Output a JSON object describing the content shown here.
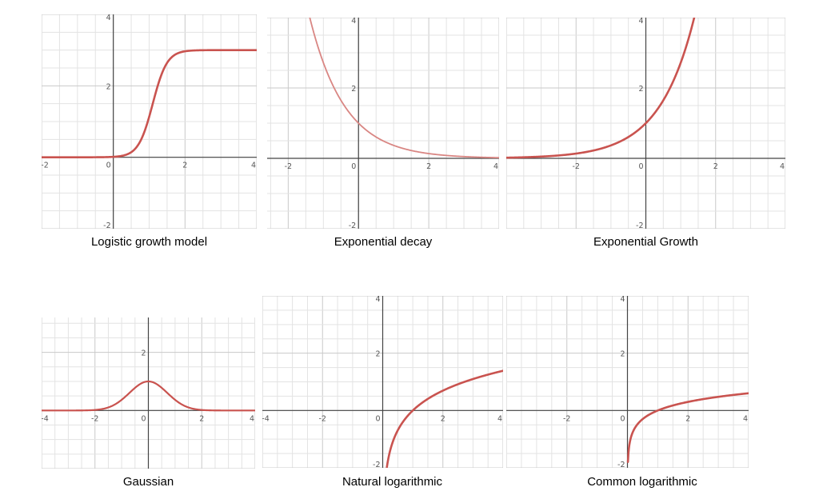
{
  "colors": {
    "grid_minor": "#e3e3e3",
    "grid_major": "#c9c9c9",
    "axis": "#444444",
    "tick_text": "#555555",
    "curve": "#c9534f",
    "curve_light": "#d98683"
  },
  "chart_data": [
    {
      "type": "line",
      "title": "Logistic growth model",
      "function": "logistic",
      "xlim": [
        -2,
        4
      ],
      "ylim": [
        -2,
        4
      ],
      "xticks": [
        "-2",
        "0",
        "2",
        "4"
      ],
      "yticks": [
        "-2",
        "2",
        "4"
      ],
      "x": [
        -2,
        -1,
        0,
        0.5,
        1,
        1.5,
        2,
        3,
        4
      ],
      "y": [
        0,
        0,
        0.06,
        0.4,
        1.5,
        2.6,
        2.94,
        3,
        3
      ],
      "xlabel": "",
      "ylabel": ""
    },
    {
      "type": "line",
      "title": "Exponential decay",
      "function": "exp_decay",
      "xlim": [
        -2.6,
        4
      ],
      "ylim": [
        -2,
        4
      ],
      "xticks": [
        "-2",
        "0",
        "2",
        "4"
      ],
      "yticks": [
        "-2",
        "2",
        "4"
      ],
      "x": [
        -1.3,
        -1,
        0,
        1,
        2,
        3,
        4
      ],
      "y": [
        3.67,
        2.72,
        1,
        0.37,
        0.14,
        0.05,
        0.02
      ],
      "xlabel": "",
      "ylabel": ""
    },
    {
      "type": "line",
      "title": "Exponential Growth",
      "function": "exp_growth",
      "xlim": [
        -4,
        4
      ],
      "ylim": [
        -2,
        4
      ],
      "xticks": [
        "-2",
        "0",
        "2",
        "4"
      ],
      "yticks": [
        "-2",
        "2",
        "4"
      ],
      "x": [
        -4,
        -2,
        -1,
        0,
        0.5,
        1,
        1.4
      ],
      "y": [
        0.02,
        0.14,
        0.37,
        1,
        1.65,
        2.72,
        4
      ],
      "xlabel": "",
      "ylabel": ""
    },
    {
      "type": "line",
      "title": "Gaussian",
      "function": "gaussian",
      "xlim": [
        -4,
        4
      ],
      "ylim": [
        -2,
        3.2
      ],
      "xticks": [
        "-4",
        "-2",
        "0",
        "2",
        "4"
      ],
      "yticks": [
        "2"
      ],
      "x": [
        -4,
        -2,
        -1,
        0,
        1,
        2,
        4
      ],
      "y": [
        0,
        0.02,
        0.37,
        1,
        0.37,
        0.02,
        0
      ],
      "xlabel": "",
      "ylabel": ""
    },
    {
      "type": "line",
      "title": "Natural logarithmic",
      "function": "ln",
      "xlim": [
        -4,
        4
      ],
      "ylim": [
        -2,
        4
      ],
      "xticks": [
        "-4",
        "-2",
        "0",
        "2",
        "4"
      ],
      "yticks": [
        "-2",
        "2",
        "4"
      ],
      "x": [
        0.14,
        0.5,
        1,
        2,
        3,
        4
      ],
      "y": [
        -2,
        -0.69,
        0,
        0.69,
        1.1,
        1.39
      ],
      "xlabel": "",
      "ylabel": ""
    },
    {
      "type": "line",
      "title": "Common logarithmic",
      "function": "log10",
      "xlim": [
        -4,
        4
      ],
      "ylim": [
        -2,
        4
      ],
      "xticks": [
        "-2",
        "0",
        "2",
        "4"
      ],
      "yticks": [
        "-2",
        "2",
        "4"
      ],
      "x": [
        0.01,
        0.1,
        0.5,
        1,
        2,
        4
      ],
      "y": [
        -2,
        -1,
        -0.3,
        0,
        0.3,
        0.6
      ],
      "xlabel": "",
      "ylabel": ""
    }
  ]
}
